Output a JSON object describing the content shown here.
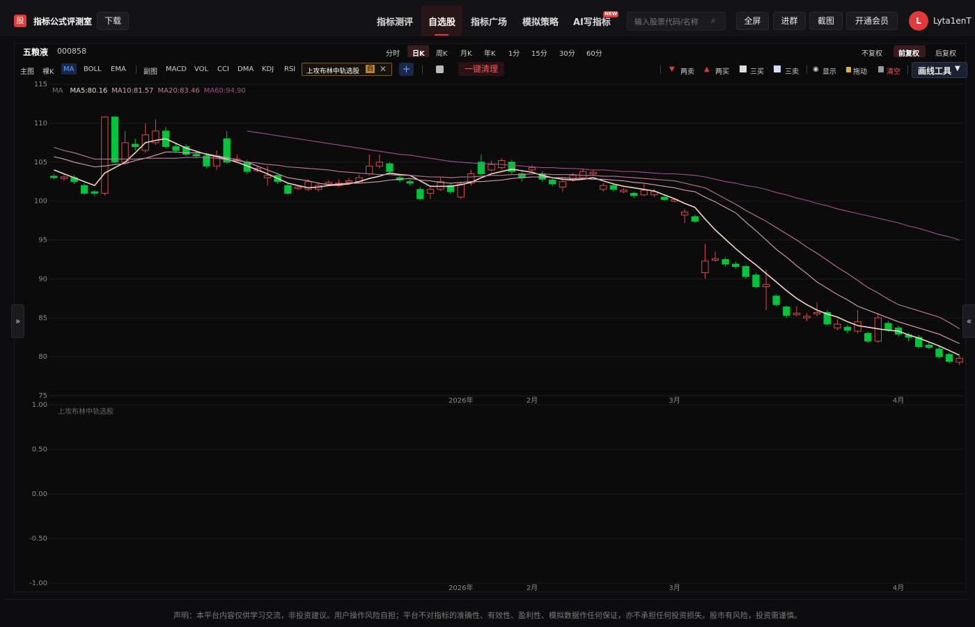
{
  "header": {
    "logo": "股",
    "app_name": "指标公式评测室",
    "download": "下载",
    "nav": [
      "指标测评",
      "自选股",
      "指标广场",
      "模拟策略",
      "AI写指标"
    ],
    "badge": "NEW",
    "search_placeholder": "输入股票代码/名称",
    "buttons": [
      "全屏",
      "进群",
      "截图",
      "开通会员"
    ],
    "avatar": "L",
    "username": "Lyta1enT"
  },
  "stock": {
    "name": "五粮液",
    "code": "000858",
    "periods": [
      "分时",
      "日K",
      "周K",
      "月K",
      "年K",
      "1分",
      "15分",
      "30分",
      "60分"
    ],
    "adjust": [
      "不复权",
      "前复权",
      "后复权"
    ]
  },
  "toolbar": {
    "main_label": "主图",
    "main_items": [
      "裸K",
      "MA",
      "BOLL",
      "EMA"
    ],
    "sub_label": "副图",
    "sub_items": [
      "MACD",
      "VOL",
      "CCI",
      "DMA",
      "KDJ",
      "RSI"
    ],
    "formula_tag": "上攻布林中轨选股",
    "tag_badge": "自",
    "clear": "一键清理",
    "tools": [
      "两卖",
      "两买",
      "三买",
      "三卖",
      "显示",
      "拖动",
      "清空"
    ],
    "draw_tool": "画线工具"
  },
  "chart_data": [
    {
      "type": "candlestick",
      "legend_title": "MA",
      "categories": [
        null,
        null,
        null,
        null,
        null,
        null,
        null,
        null,
        null,
        null,
        null,
        null,
        null,
        null,
        null,
        null,
        null,
        null,
        null,
        null,
        null,
        null,
        null,
        null,
        null,
        null,
        null,
        null,
        null,
        null,
        null,
        null,
        null,
        null,
        null,
        null,
        null,
        null,
        null,
        null,
        "2026年",
        null,
        null,
        null,
        null,
        null,
        null,
        "2月",
        null,
        null,
        null,
        null,
        null,
        null,
        null,
        null,
        null,
        null,
        null,
        null,
        null,
        "3月",
        null,
        null,
        null,
        null,
        null,
        null,
        null,
        null,
        null,
        null,
        null,
        null,
        null,
        null,
        null,
        null,
        null,
        null,
        null,
        null,
        null,
        "4月",
        null,
        null,
        null,
        null,
        null,
        null
      ],
      "open": [
        103.2,
        102.9,
        103,
        102,
        101.2,
        101,
        110.8,
        105,
        107.3,
        106.5,
        107.5,
        109,
        107,
        107,
        106,
        105.8,
        104.5,
        108,
        105.2,
        105,
        103.9,
        103,
        103.3,
        102,
        101.6,
        101.5,
        101.5,
        102.2,
        102,
        102.4,
        102.5,
        103.5,
        104.5,
        104.8,
        103,
        102.5,
        101.5,
        101,
        101.5,
        102,
        100.5,
        102.3,
        105,
        104,
        104.3,
        105,
        103.5,
        104,
        103.5,
        102.7,
        101.8,
        102.8,
        103,
        103.5,
        101.5,
        102,
        101.2,
        101,
        100.8,
        100.8,
        100.5,
        100,
        98.2,
        98,
        90.8,
        92.4,
        92.5,
        91.9,
        91.6,
        90.5,
        89,
        87.8,
        86.4,
        85.4,
        85,
        85.5,
        85.7,
        83.7,
        83.8,
        83.3,
        83,
        82,
        84.3,
        83.7,
        82.8,
        82.5,
        81.5,
        81,
        80.3,
        79.3
      ],
      "close": [
        103,
        103.1,
        102.5,
        101,
        101,
        110.8,
        105,
        107.5,
        107,
        108.5,
        109,
        107,
        106.5,
        106,
        105.8,
        104.5,
        105.8,
        105,
        105.4,
        103.8,
        104.2,
        103.3,
        102.5,
        101,
        101.8,
        102.5,
        102,
        102.4,
        102.3,
        102.6,
        103,
        104.5,
        105,
        103.8,
        102.7,
        102.3,
        100.3,
        101.5,
        102.5,
        101.2,
        102.2,
        103.5,
        103.5,
        104.7,
        105.2,
        103.8,
        103,
        104.3,
        102.8,
        102.2,
        102.5,
        103.3,
        103.8,
        103.7,
        102,
        101.5,
        101.4,
        100.7,
        101.4,
        101.2,
        100.2,
        100.2,
        98.6,
        97.4,
        92.3,
        92.6,
        91.9,
        91.6,
        90.3,
        89,
        89.3,
        86.7,
        85.3,
        85.6,
        85.2,
        85.7,
        84.2,
        84.2,
        83.4,
        84.5,
        82,
        85,
        83.5,
        82.9,
        82.5,
        81.3,
        81.2,
        80,
        79.4,
        79.8
      ],
      "high": [
        103.5,
        103.4,
        103.3,
        102.3,
        101.4,
        110.9,
        110.9,
        109,
        108,
        110,
        110.5,
        109.5,
        107.5,
        107.3,
        106.5,
        106,
        106.5,
        109,
        106,
        105.3,
        104.5,
        104.5,
        103.6,
        102.3,
        102,
        102.8,
        102.4,
        102.7,
        102.8,
        103,
        103.4,
        106,
        106,
        105,
        103.3,
        102.8,
        101.8,
        102,
        103,
        102.3,
        102.5,
        104,
        106,
        105.2,
        105.5,
        105.3,
        103.8,
        104.6,
        103.8,
        103,
        102.8,
        103.6,
        104.2,
        104,
        102.3,
        102.2,
        101.7,
        101.2,
        102.2,
        101.6,
        100.7,
        100.4,
        99,
        98.2,
        94.5,
        93.5,
        92.8,
        92.2,
        91.8,
        90.8,
        91.2,
        88,
        86.6,
        86.5,
        85.6,
        87,
        86,
        84.8,
        84.1,
        86,
        83.2,
        85.6,
        84.6,
        84,
        83.1,
        82.8,
        81.8,
        81.3,
        80.5,
        80.1
      ],
      "low": [
        102.8,
        102.6,
        102.2,
        100.8,
        100.6,
        100.7,
        104.8,
        104.8,
        106.5,
        106.2,
        107.2,
        106.8,
        106.2,
        105.8,
        105.5,
        104.2,
        104,
        104.8,
        105,
        103.5,
        103.7,
        102,
        102.2,
        100.8,
        101.4,
        101.3,
        101.2,
        102,
        101.8,
        102.2,
        102.3,
        103.3,
        104.2,
        103.5,
        102.4,
        102,
        100.1,
        100.3,
        101.3,
        100.9,
        100.3,
        102,
        103.3,
        103.8,
        104,
        103.5,
        102.5,
        103.8,
        102.5,
        101.9,
        101.2,
        102.5,
        102.8,
        103.3,
        101.2,
        101.2,
        101,
        100.4,
        100.6,
        100.5,
        100,
        99.8,
        97.2,
        97.2,
        90,
        92.2,
        91.6,
        91.3,
        90,
        88.8,
        86,
        86.5,
        85,
        85.2,
        84.6,
        85.2,
        84,
        83.4,
        83,
        83,
        81.8,
        81.8,
        83.2,
        82.6,
        82,
        81.1,
        81,
        79.8,
        79.2,
        78.9
      ],
      "up_color": "#e04848",
      "down_color": "#00c43a",
      "series": [
        {
          "name": "MA5:80.16",
          "color": "#f2d6c8",
          "values": [
            104,
            103.5,
            103,
            102.5,
            102,
            103.6,
            104.3,
            105,
            106.2,
            107.5,
            107.8,
            108,
            107.4,
            106.8,
            106.4,
            106,
            105.7,
            105.4,
            105,
            104.5,
            104,
            103.5,
            102.9,
            102.3,
            102,
            101.7,
            101.8,
            102,
            102.1,
            102.2,
            102.5,
            102.9,
            103.2,
            103.6,
            103.4,
            103.3,
            102.6,
            101.9,
            101.9,
            101.9,
            102.1,
            102.4,
            103,
            103.5,
            103.8,
            104.1,
            103.9,
            103.7,
            103.3,
            103,
            102.8,
            102.7,
            102.8,
            103,
            102.6,
            102.2,
            101.9,
            101.7,
            101.5,
            101.3,
            100.8,
            100.3,
            99.7,
            99.2,
            97.7,
            96.3,
            95.1,
            93.9,
            92.8,
            91.8,
            90.7,
            89.6,
            88.5,
            87.5,
            86.7,
            86,
            85.5,
            85.1,
            84.5,
            84,
            83.8,
            83.6,
            83.4,
            83.3,
            82.8,
            82.4,
            81.9,
            81.4,
            80.8,
            80.2
          ]
        },
        {
          "name": "MA10:81.57",
          "color": "#d9a3b5",
          "values": [
            105.7,
            105.4,
            105,
            104.7,
            104.4,
            104.5,
            104.7,
            104.8,
            105.2,
            105.5,
            105.9,
            106.3,
            106.3,
            106.2,
            106.2,
            106.1,
            105.8,
            105.6,
            105.3,
            105,
            104.5,
            104,
            103.5,
            103,
            102.8,
            102.6,
            102.3,
            102.1,
            102.2,
            102.3,
            102.3,
            102.4,
            102.5,
            102.7,
            102.8,
            102.9,
            102.7,
            102.6,
            102.4,
            102.3,
            102.4,
            102.5,
            102.5,
            102.6,
            102.7,
            102.9,
            103,
            103.1,
            103.1,
            103,
            103,
            102.9,
            102.9,
            102.8,
            102.8,
            102.7,
            102.6,
            102.4,
            102.3,
            102.1,
            101.9,
            101.7,
            101.4,
            101.2,
            100.5,
            99.9,
            99.2,
            98.5,
            97.3,
            96.2,
            95,
            93.8,
            92.8,
            91.7,
            90.7,
            89.6,
            88.8,
            88,
            87.3,
            86.5,
            86,
            85.5,
            85,
            84.5,
            84.1,
            83.7,
            83.3,
            82.9,
            82.3,
            81.7
          ]
        },
        {
          "name": "MA20:83.46",
          "color": "#c07898",
          "values": [
            106.9,
            106.5,
            106.2,
            105.8,
            105.4,
            105.4,
            105.4,
            105.4,
            105.4,
            105.5,
            105.5,
            105.5,
            105.5,
            105.6,
            105.6,
            105.6,
            105.5,
            105.3,
            105.2,
            105,
            104.9,
            104.7,
            104.6,
            104.4,
            104.3,
            104.2,
            104.1,
            104,
            103.8,
            103.7,
            103.6,
            103.5,
            103.4,
            103.4,
            103.3,
            103.3,
            103.2,
            103.1,
            103.1,
            103,
            103.1,
            103.1,
            103.2,
            103.3,
            103.3,
            103.4,
            103.4,
            103.5,
            103.5,
            103.4,
            103.4,
            103.4,
            103.3,
            103.3,
            103.2,
            103.2,
            103.1,
            103,
            102.9,
            102.8,
            102.7,
            102.6,
            102.3,
            102,
            101.7,
            101,
            100.3,
            99.6,
            98.8,
            98.1,
            97.4,
            96.6,
            95.8,
            95,
            94.1,
            93.3,
            92.4,
            91.5,
            90.7,
            89.8,
            88.9,
            88.2,
            87.4,
            86.7,
            86.3,
            85.9,
            85.5,
            85.1,
            84.4,
            83.6
          ]
        },
        {
          "name": "MA60:94.90",
          "color": "#a0508f",
          "values": [
            null,
            null,
            null,
            null,
            null,
            null,
            null,
            null,
            null,
            null,
            null,
            null,
            null,
            null,
            null,
            null,
            null,
            null,
            null,
            109,
            108.8,
            108.6,
            108.4,
            108.2,
            108,
            107.8,
            107.6,
            107.4,
            107.2,
            107,
            106.8,
            106.6,
            106.4,
            106.2,
            106,
            105.9,
            105.7,
            105.5,
            105.3,
            105.1,
            105,
            104.9,
            104.8,
            104.8,
            104.7,
            104.6,
            104.5,
            104.4,
            104.3,
            104.3,
            104.2,
            104.2,
            104.1,
            104,
            104,
            103.9,
            103.8,
            103.8,
            103.7,
            103.6,
            103.5,
            103.5,
            103.4,
            103.3,
            103.1,
            102.8,
            102.5,
            102.3,
            102,
            101.8,
            101.5,
            101.1,
            100.8,
            100.4,
            100.1,
            99.7,
            99.4,
            99,
            98.7,
            98.4,
            98.1,
            97.8,
            97.5,
            97.2,
            96.8,
            96.5,
            96.1,
            95.7,
            95.4,
            95
          ]
        }
      ],
      "ylim": [
        75,
        115
      ],
      "yticks": [
        75,
        80,
        85,
        90,
        95,
        100,
        105,
        110,
        115
      ],
      "grid": true
    },
    {
      "type": "line",
      "title": "上攻布林中轨选股",
      "ylim": [
        -1,
        1
      ],
      "yticks": [
        {
          "value": -1,
          "label": "-1.00"
        },
        {
          "value": -0.5,
          "label": "-0.50"
        },
        {
          "value": 0,
          "label": "0.00"
        },
        {
          "value": 0.5,
          "label": "0.50"
        },
        {
          "value": 1,
          "label": "1.00"
        }
      ],
      "grid": true
    }
  ],
  "footer": {
    "disclaimer": "声明：本平台内容仅供学习交流，非投资建议。用户操作风险自担；平台不对指标的准确性、有效性、盈利性、模拟数据作任何保证，亦不承担任何投资损失。股市有风险，投资需谨慎。"
  }
}
